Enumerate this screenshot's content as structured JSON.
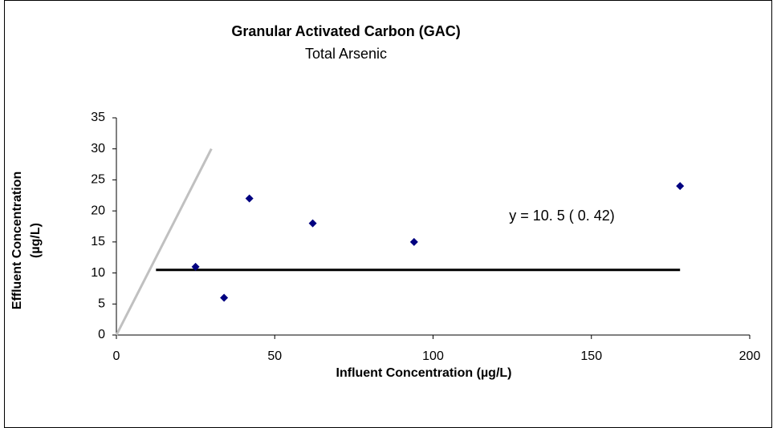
{
  "chart_data": {
    "type": "scatter",
    "title": "Granular Activated Carbon (GAC)",
    "subtitle": "Total Arsenic",
    "xlabel": "Influent Concentration (µg/L)",
    "ylabel": [
      "Effluent Concentration",
      "(µg/L)"
    ],
    "annotation": "y  =  10. 5  ( 0. 42)",
    "series": [
      {
        "color": "#000080",
        "x": [
          25,
          34,
          42,
          62,
          94,
          178
        ],
        "values": [
          11,
          6,
          22,
          18,
          15,
          24
        ]
      }
    ],
    "lines": [
      {
        "color": "#c0c0c0",
        "x": [
          0,
          30
        ],
        "values": [
          0,
          30
        ]
      },
      {
        "color": "#000000",
        "x": [
          12.5,
          178
        ],
        "values": [
          10.5,
          10.5
        ]
      }
    ],
    "xlim": [
      0,
      200
    ],
    "xticks": [
      0,
      50,
      100,
      150,
      200
    ],
    "ylim": [
      0,
      35
    ],
    "yticks": [
      0,
      5,
      10,
      15,
      20,
      25,
      30,
      35
    ]
  }
}
